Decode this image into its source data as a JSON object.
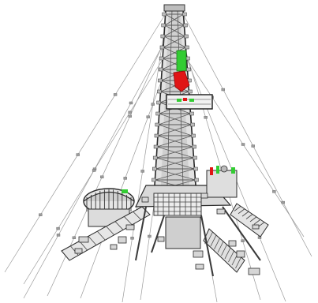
{
  "scene": {
    "subject": "drilling-rig-3d-render",
    "colors": {
      "background": "#ffffff",
      "steel_light": "#d4d4d4",
      "steel_mid": "#a8a8a8",
      "steel_dark": "#4a4a4a",
      "outline": "#2a2a2a",
      "guy_wire": "#9a9a9a",
      "highlight_green": "#33cc33",
      "highlight_red": "#e01515"
    }
  }
}
